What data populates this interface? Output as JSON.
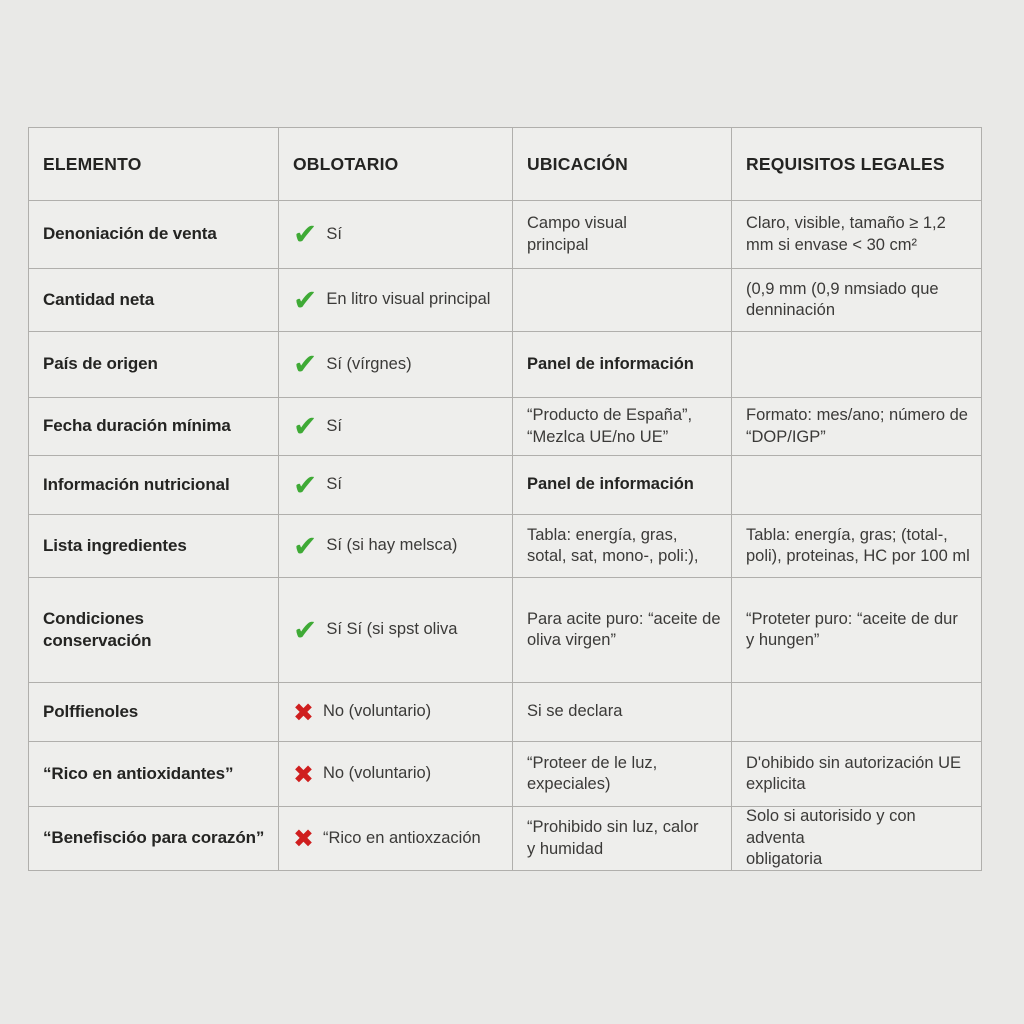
{
  "colors": {
    "page_bg": "#e9e9e7",
    "cell_bg": "#eeeeec",
    "border_gray": "#b0afac",
    "check_green": "#3faa36",
    "cross_red": "#cf1e1e",
    "text_dark": "#242422",
    "text_body": "#3b3a38"
  },
  "icons": {
    "check": "✔",
    "cross": "✖"
  },
  "table": {
    "headers": [
      "ELEMENTO",
      "OBLOTARIO",
      "UBICACIÓN",
      "REQUISITOS LEGALES"
    ],
    "rows": [
      {
        "elemento": "Denoniación de venta",
        "mark": "check",
        "obligatorio": "Sí",
        "ubicacion": "Campo visual\nprincipal",
        "requisitos": "Claro, visible, tamaño ≥ 1,2\nmm si envase < 30 cm²"
      },
      {
        "elemento": "Cantidad neta",
        "mark": "check",
        "obligatorio": "En litro visual principal",
        "ubicacion": "",
        "requisitos": "(0,9 mm (0,9 nmsiado que\ndenninación"
      },
      {
        "elemento": "País de origen",
        "mark": "check",
        "obligatorio": "Sí (vírgnes)",
        "ubicacion": "Panel de información",
        "requisitos": ""
      },
      {
        "elemento": "Fecha duración mínima",
        "mark": "check",
        "obligatorio": "Sí",
        "ubicacion": "“Producto de España”,\n“Mezlca UE/no UE”",
        "requisitos": "Formato: mes/ano; número de\n“DOP/IGP”"
      },
      {
        "elemento": "Información nutricional",
        "mark": "check",
        "obligatorio": "Sí",
        "ubicacion": "Panel de información",
        "requisitos": ""
      },
      {
        "elemento": "Lista ingredientes",
        "mark": "check",
        "obligatorio": "Sí (si hay melsca)",
        "ubicacion": "Tabla: energía, gras,\nsotal, sat, mono-, poli:),",
        "requisitos": "Tabla: energía, gras; (total-,\npoli), proteinas, HC por 100 ml"
      },
      {
        "elemento": "Condiciones\nconservación",
        "mark": "check",
        "obligatorio": "Sí Sí (si spst oliva",
        "ubicacion": "Para acite puro: “aceite de\noliva virgen”",
        "requisitos": "“Proteter puro: “aceite de dur\ny hungen”"
      },
      {
        "elemento": "Polffienoles",
        "mark": "cross",
        "obligatorio": "No (voluntario)",
        "ubicacion": "Si se declara",
        "requisitos": ""
      },
      {
        "elemento": "“Rico en antioxidantes”",
        "mark": "cross",
        "obligatorio": "No (voluntario)",
        "ubicacion": "“Proteer de le luz,\nexpeciales)",
        "requisitos": "D'ohibido sin autorización UE\nexplicita"
      },
      {
        "elemento": "“Benefiscióo para corazón”",
        "mark": "cross",
        "obligatorio": "“Rico en antioxzación",
        "ubicacion": "“Prohibido sin luz, calor\ny humidad",
        "requisitos": "Solo si autorisido y con adventa\nobligatoria"
      }
    ]
  }
}
